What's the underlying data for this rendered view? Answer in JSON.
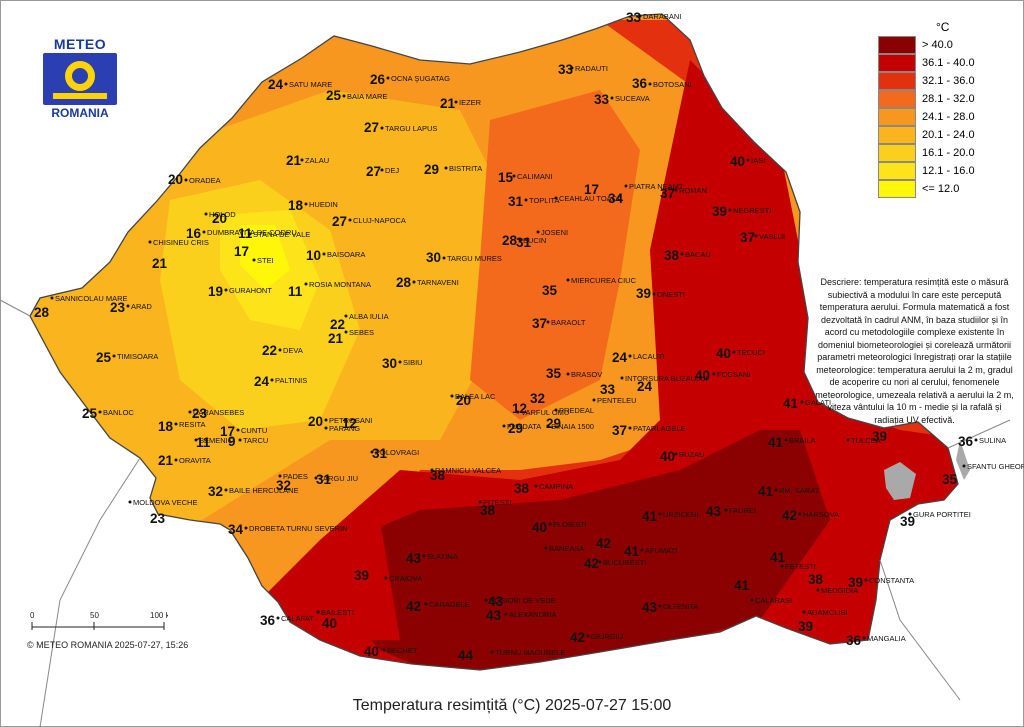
{
  "map": {
    "title": "Temperatura resimțită (°C) 2025-07-27 15:00",
    "copyright": "© METEO ROMANIA 2025-07-27, 15:26",
    "logo": {
      "top": "METEO",
      "bottom": "ROMANIA"
    },
    "description": "Descriere: temperatura resimțită este o măsură subiectivă a modului în care este percepută temperatura aerului. Formula matematică a fost dezvoltată în cadrul ANM, în baza studiilor și în acord cu metodologiile complexe existente în domeniul biometeorologiei și corelează următorii parametri meteorologici înregistrați orar la stațiile meteorologice: temperatura aerului la 2 m, gradul de acoperire cu nori al cerului, fenomenele meteorologice, umezeala relativă a aerului la 2 m, viteza vântului la 10 m - medie și la rafală și radiația UV efectivă.",
    "scale": {
      "labels": [
        "0",
        "50",
        "100 km"
      ]
    },
    "legend": {
      "unit": "°C",
      "classes": [
        {
          "label": "> 40.0",
          "color": "#8b0000"
        },
        {
          "label": "36.1 - 40.0",
          "color": "#c40000"
        },
        {
          "label": "32.1 - 36.0",
          "color": "#e3300e"
        },
        {
          "label": "28.1 - 32.0",
          "color": "#f46a1c"
        },
        {
          "label": "24.1 - 28.0",
          "color": "#f7971f"
        },
        {
          "label": "20.1 - 24.0",
          "color": "#f9b41e"
        },
        {
          "label": "16.1 - 20.0",
          "color": "#fbd01d"
        },
        {
          "label": "12.1 - 16.0",
          "color": "#fde31a"
        },
        {
          "label": "<= 12.0",
          "color": "#fff60a"
        }
      ]
    },
    "colors": {
      "land_bg": "#f7971f",
      "border": "#555555",
      "water": "#a9a9a9"
    },
    "stations": [
      {
        "name": "DARABANI",
        "value": "33"
      },
      {
        "name": "SATU MARE",
        "value": "24"
      },
      {
        "name": "OCNA ŞUGATAG",
        "value": "26"
      },
      {
        "name": "BAIA MARE",
        "value": "25"
      },
      {
        "name": "RADAUTI",
        "value": "33"
      },
      {
        "name": "BOTOSANI",
        "value": "36"
      },
      {
        "name": "IEZER",
        "value": "21"
      },
      {
        "name": "SUCEAVA",
        "value": "33"
      },
      {
        "name": "TARGU LAPUS",
        "value": "27"
      },
      {
        "name": "ZALAU",
        "value": "21"
      },
      {
        "name": "DEJ",
        "value": "27"
      },
      {
        "name": "BISTRITA",
        "value": "29"
      },
      {
        "name": "CALIMANI",
        "value": "15"
      },
      {
        "name": "IASI",
        "value": "40"
      },
      {
        "name": "ORADEA",
        "value": "20"
      },
      {
        "name": "CEAHLAU TOACA",
        "value": "17"
      },
      {
        "name": "PIATRA NEAMT",
        "value": "34"
      },
      {
        "name": "ROMAN",
        "value": "37"
      },
      {
        "name": "HUEDIN",
        "value": "18"
      },
      {
        "name": "TOPLITA",
        "value": "31"
      },
      {
        "name": "NEGRESTI",
        "value": "39"
      },
      {
        "name": "HOLOD",
        "value": "20"
      },
      {
        "name": "CLUJ-NAPOCA",
        "value": "27"
      },
      {
        "name": "DUMBRAVITA DE CODRU",
        "value": "16"
      },
      {
        "name": "STANA DE VALE",
        "value": "11"
      },
      {
        "name": "JOSENI",
        "value": "31"
      },
      {
        "name": "BUCIN",
        "value": "28"
      },
      {
        "name": "VASLUI",
        "value": "37"
      },
      {
        "name": "CHISINEU CRIS",
        "value": "21"
      },
      {
        "name": "STEI",
        "value": "17"
      },
      {
        "name": "BAISOARA",
        "value": "10"
      },
      {
        "name": "TARGU MURES",
        "value": "30"
      },
      {
        "name": "BACAU",
        "value": "38"
      },
      {
        "name": "MIERCUREA CIUC",
        "value": "35"
      },
      {
        "name": "TARNAVENI",
        "value": "28"
      },
      {
        "name": "GURAHONT",
        "value": "19"
      },
      {
        "name": "ROSIA MONTANA",
        "value": "11"
      },
      {
        "name": "ONESTI",
        "value": "39"
      },
      {
        "name": "SANNICOLAU MARE",
        "value": "28"
      },
      {
        "name": "ARAD",
        "value": "23"
      },
      {
        "name": "ALBA IULIA",
        "value": "22"
      },
      {
        "name": "SEBES",
        "value": "21"
      },
      {
        "name": "BARAOLT",
        "value": "37"
      },
      {
        "name": "DEVA",
        "value": "22"
      },
      {
        "name": "SIBIU",
        "value": "30"
      },
      {
        "name": "LACAUTI",
        "value": "24"
      },
      {
        "name": "TECUCI",
        "value": "40"
      },
      {
        "name": "TIMISOARA",
        "value": "25"
      },
      {
        "name": "PALTINIS",
        "value": "24"
      },
      {
        "name": "BRASOV",
        "value": "35"
      },
      {
        "name": "INTORSURA BUZAULUI",
        "value": "33"
      },
      {
        "name": "PENTELEU",
        "value": "24"
      },
      {
        "name": "FOCSANI",
        "value": "40"
      },
      {
        "name": "BALEA LAC",
        "value": "20"
      },
      {
        "name": "GALATI",
        "value": "41"
      },
      {
        "name": "BANLOC",
        "value": "25"
      },
      {
        "name": "CARANSEBES",
        "value": "23"
      },
      {
        "name": "VARFUL OMU",
        "value": "32"
      },
      {
        "name": "PREDEAL",
        "value": "12"
      },
      {
        "name": "RESITA",
        "value": "18"
      },
      {
        "name": "CUNTU",
        "value": "17"
      },
      {
        "name": "TARCU",
        "value": "9"
      },
      {
        "name": "PETROSANI",
        "value": "20"
      },
      {
        "name": "PARANG",
        "value": "12"
      },
      {
        "name": "FUNDATA",
        "value": "29"
      },
      {
        "name": "SINAIA 1500",
        "value": "29"
      },
      {
        "name": "PATARLAGELE",
        "value": "37"
      },
      {
        "name": "TULCEA",
        "value": "39"
      },
      {
        "name": "SULINA",
        "value": "36"
      },
      {
        "name": "BRAILA",
        "value": "41"
      },
      {
        "name": "SEMENIC",
        "value": "11"
      },
      {
        "name": "POLOVRAGI",
        "value": "31"
      },
      {
        "name": "BUZAU",
        "value": "40"
      },
      {
        "name": "ORAVITA",
        "value": "21"
      },
      {
        "name": "TARGU JIU",
        "value": "31"
      },
      {
        "name": "PADES",
        "value": "32"
      },
      {
        "name": "RAMNICU VALCEA",
        "value": "38"
      },
      {
        "name": "SFANTU GHEORGHE",
        "value": "35"
      },
      {
        "name": "BAILE HERCULANE",
        "value": "32"
      },
      {
        "name": "MOLDOVA VECHE",
        "value": "23"
      },
      {
        "name": "CAMPINA",
        "value": "38"
      },
      {
        "name": "PITESTI",
        "value": "38"
      },
      {
        "name": "URZICENI",
        "value": "41"
      },
      {
        "name": "FAUREI",
        "value": "43"
      },
      {
        "name": "GURA PORTITEI",
        "value": "39"
      },
      {
        "name": "HARSOVA",
        "value": "42"
      },
      {
        "name": "DROBETA TURNU SEVERIN",
        "value": "34"
      },
      {
        "name": "PLOIESTI",
        "value": "40"
      },
      {
        "name": "RM. SARAT",
        "value": "41"
      },
      {
        "name": "SLATINA",
        "value": "43"
      },
      {
        "name": "BANEASA",
        "value": "42"
      },
      {
        "name": "AFUMATI",
        "value": "41"
      },
      {
        "name": "BUCURESTI",
        "value": "42"
      },
      {
        "name": "FETESTI",
        "value": "41"
      },
      {
        "name": "CRAIOVA",
        "value": "39"
      },
      {
        "name": "CALARASI",
        "value": "41"
      },
      {
        "name": "MEDGIDIA",
        "value": "38"
      },
      {
        "name": "CONSTANTA",
        "value": "39"
      },
      {
        "name": "CARAGELE",
        "value": "42"
      },
      {
        "name": "ROSIORI DE VEDE",
        "value": "43"
      },
      {
        "name": "ALEXANDRIA",
        "value": "43"
      },
      {
        "name": "OLTENITA",
        "value": "43"
      },
      {
        "name": "CALAFAT",
        "value": "36"
      },
      {
        "name": "BAILESTI",
        "value": "40"
      },
      {
        "name": "ADAMCLISI",
        "value": "39"
      },
      {
        "name": "GIURGIU",
        "value": "42"
      },
      {
        "name": "MANGALIA",
        "value": "36"
      },
      {
        "name": "TURNU MAGURELE",
        "value": "44"
      },
      {
        "name": "BECHET",
        "value": "40"
      }
    ]
  }
}
